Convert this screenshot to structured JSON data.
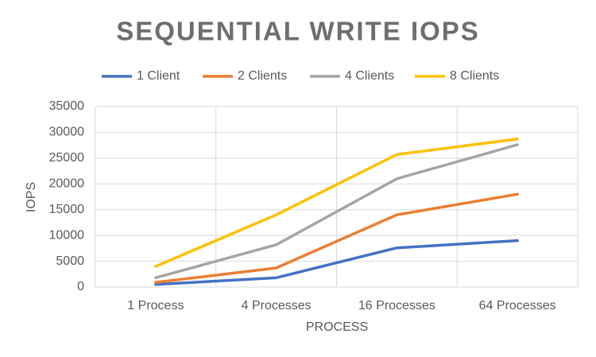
{
  "chart_data": {
    "type": "line",
    "title": "SEQUENTIAL WRITE IOPS",
    "x_label": "PROCESS",
    "y_label": "IOPS",
    "categories": [
      "1 Process",
      "4 Processes",
      "16 Processes",
      "64 Processes"
    ],
    "series": [
      {
        "name": "1 Client",
        "color": "#4472c4",
        "values": [
          500,
          1800,
          7600,
          9000
        ]
      },
      {
        "name": "2 Clients",
        "color": "#ed7d31",
        "values": [
          900,
          3700,
          14000,
          18000
        ]
      },
      {
        "name": "4 Clients",
        "color": "#a5a5a5",
        "values": [
          1800,
          8200,
          21000,
          27600
        ]
      },
      {
        "name": "8 Clients",
        "color": "#ffc000",
        "values": [
          4000,
          14000,
          25700,
          28700
        ]
      }
    ],
    "ylim": [
      0,
      35000
    ],
    "yticks": [
      0,
      5000,
      10000,
      15000,
      20000,
      25000,
      30000,
      35000
    ],
    "grid": true,
    "legend": "top"
  }
}
